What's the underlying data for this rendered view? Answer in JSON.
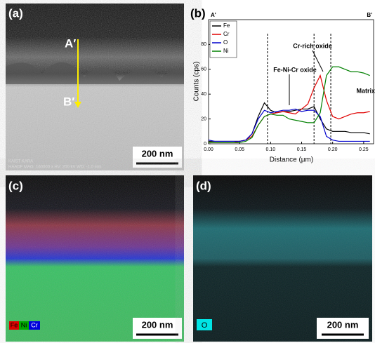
{
  "panels": {
    "a": {
      "label": "(a)",
      "point_a": "A′",
      "point_b": "B′",
      "scale": "200 nm",
      "caption1": "KAIST KARA",
      "caption2": "HAADF MAG: 160000 x HV: 200 kV WD: -1.0 mm"
    },
    "c": {
      "label": "(c)",
      "scale": "200 nm",
      "legend": [
        "Fe",
        "Ni",
        "Cr"
      ]
    },
    "d": {
      "label": "(d)",
      "scale": "200 nm",
      "legend": "O"
    }
  },
  "chart_data": {
    "type": "line",
    "panel_label": "(b)",
    "start_label": "A'",
    "end_label": "B'",
    "x_label": "Distance (μm)",
    "y_label": "Counts (cps)",
    "annotations": [
      "Cr-rich oxide",
      "Fe-Ni-Cr oxide",
      "Matrix"
    ],
    "markers": [
      0.095,
      0.17,
      0.197
    ],
    "x": [
      0,
      0.01,
      0.02,
      0.03,
      0.04,
      0.05,
      0.06,
      0.07,
      0.08,
      0.09,
      0.1,
      0.11,
      0.12,
      0.13,
      0.14,
      0.15,
      0.16,
      0.17,
      0.18,
      0.19,
      0.2,
      0.21,
      0.22,
      0.23,
      0.24,
      0.25,
      0.26
    ],
    "series": [
      {
        "name": "Fe",
        "color": "#000000",
        "values": [
          2,
          2,
          2,
          2,
          2,
          2,
          3,
          8,
          22,
          33,
          27,
          25,
          26,
          26,
          27,
          28,
          28,
          30,
          20,
          12,
          10,
          10,
          10,
          9,
          9,
          9,
          8
        ]
      },
      {
        "name": "Cr",
        "color": "#e00000",
        "values": [
          1,
          1,
          1,
          1,
          1,
          2,
          3,
          6,
          15,
          22,
          24,
          25,
          26,
          25,
          24,
          28,
          32,
          45,
          55,
          35,
          22,
          20,
          22,
          24,
          25,
          25,
          26
        ]
      },
      {
        "name": "O",
        "color": "#0000cc",
        "values": [
          3,
          2,
          2,
          2,
          2,
          2,
          3,
          8,
          20,
          27,
          25,
          26,
          27,
          27,
          28,
          26,
          27,
          27,
          22,
          6,
          3,
          2,
          2,
          2,
          2,
          2,
          2
        ]
      },
      {
        "name": "Ni",
        "color": "#008000",
        "values": [
          1,
          1,
          1,
          1,
          1,
          1,
          2,
          5,
          15,
          22,
          24,
          23,
          23,
          20,
          19,
          18,
          17,
          17,
          25,
          55,
          62,
          62,
          60,
          58,
          58,
          57,
          55
        ]
      }
    ],
    "xlim": [
      0,
      0.266
    ],
    "ylim": [
      0,
      100
    ],
    "xticks": [
      {
        "value": 0,
        "label": "0.00"
      },
      {
        "value": 0.05,
        "label": "0.05"
      },
      {
        "value": 0.1,
        "label": "0.10"
      },
      {
        "value": 0.15,
        "label": "0.15"
      },
      {
        "value": 0.2,
        "label": "0.20"
      },
      {
        "value": 0.25,
        "label": "0.25"
      }
    ],
    "yticks": [
      0,
      20,
      40,
      60,
      80
    ]
  }
}
